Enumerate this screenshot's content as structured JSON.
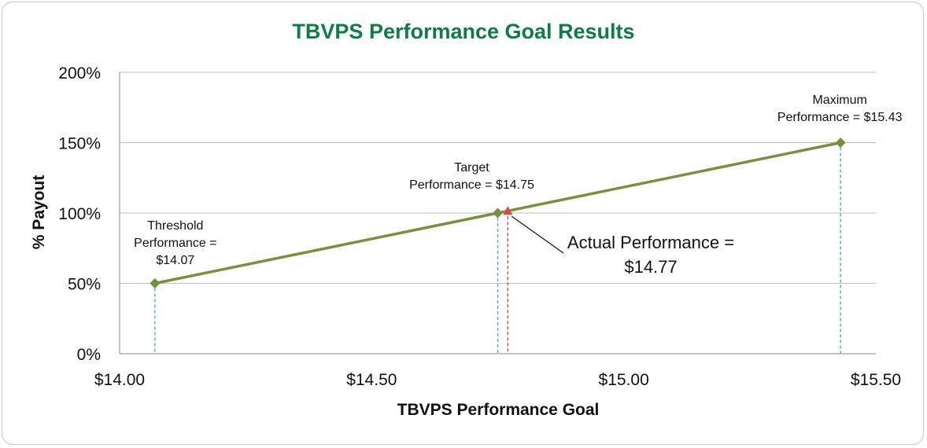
{
  "chart_data": {
    "type": "line",
    "title": "TBVPS Performance Goal Results",
    "xlabel": "TBVPS Performance Goal",
    "ylabel": "% Payout",
    "xlim": [
      14.0,
      15.5
    ],
    "ylim": [
      0,
      200
    ],
    "x_ticks": [
      "$14.00",
      "$14.50",
      "$15.00",
      "$15.50"
    ],
    "x_tick_values": [
      14.0,
      14.5,
      15.0,
      15.5
    ],
    "y_ticks": [
      "0%",
      "50%",
      "100%",
      "150%",
      "200%"
    ],
    "y_tick_values": [
      0,
      50,
      100,
      150,
      200
    ],
    "grid": "horizontal",
    "series": [
      {
        "x": [
          14.07,
          14.75,
          15.43
        ],
        "y": [
          50,
          100,
          150
        ]
      }
    ],
    "points": [
      {
        "x": 14.07,
        "y": 50,
        "label_lines": [
          "Threshold",
          "Performance =",
          "$14.07"
        ]
      },
      {
        "x": 14.75,
        "y": 100,
        "label_lines": [
          "Target",
          "Performance = $14.75"
        ]
      },
      {
        "x": 15.43,
        "y": 150,
        "label_lines": [
          "Maximum",
          "Performance = $15.43"
        ]
      }
    ],
    "actual": {
      "x": 14.77,
      "y": 101,
      "label_lines": [
        "Actual Performance =",
        "$14.77"
      ]
    },
    "colors": {
      "title": "#0e7d45",
      "line": "#76923c",
      "marker": "#76923c",
      "guide": "#4bacc6",
      "actual_marker": "#e04848",
      "actual_guide": "#c0504d",
      "grid": "#bfbfbf",
      "axis": "#888888"
    }
  }
}
